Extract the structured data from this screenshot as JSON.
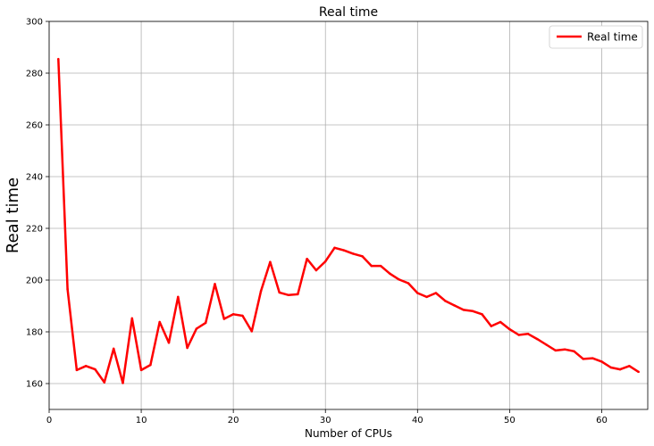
{
  "chart_data": {
    "type": "line",
    "title": "Real time",
    "xlabel": "Number of CPUs",
    "ylabel": "Real time",
    "xlim": [
      0,
      65
    ],
    "ylim": [
      150,
      300
    ],
    "xticks": [
      0,
      10,
      20,
      30,
      40,
      50,
      60
    ],
    "yticks": [
      160,
      180,
      200,
      220,
      240,
      260,
      280,
      300
    ],
    "grid": true,
    "legend_position": "top-right",
    "series": [
      {
        "name": "Real time",
        "color": "#ff0000",
        "x": [
          1,
          2,
          3,
          4,
          5,
          6,
          7,
          8,
          9,
          10,
          11,
          12,
          13,
          14,
          15,
          16,
          17,
          18,
          19,
          20,
          21,
          22,
          23,
          24,
          25,
          26,
          27,
          28,
          29,
          30,
          31,
          32,
          33,
          34,
          35,
          36,
          37,
          38,
          39,
          40,
          41,
          42,
          43,
          44,
          45,
          46,
          47,
          48,
          49,
          50,
          51,
          52,
          53,
          54,
          55,
          56,
          57,
          58,
          59,
          60,
          61,
          62,
          63,
          64
        ],
        "y": [
          285.5,
          196.5,
          165.2,
          166.8,
          165.5,
          160.5,
          173.5,
          160.2,
          185.2,
          165.2,
          167.2,
          183.8,
          175.8,
          193.5,
          173.8,
          181.2,
          183.5,
          198.5,
          185.0,
          186.8,
          186.2,
          180.2,
          195.8,
          207.0,
          195.2,
          194.2,
          194.5,
          208.2,
          203.8,
          207.2,
          212.5,
          211.5,
          210.2,
          209.2,
          205.5,
          205.5,
          202.5,
          200.2,
          198.8,
          195.0,
          193.5,
          195.0,
          192.0,
          190.2,
          188.5,
          188.0,
          186.8,
          182.2,
          183.8,
          181.0,
          178.8,
          179.2,
          177.2,
          175.0,
          172.8,
          173.2,
          172.5,
          169.5,
          169.8,
          168.5,
          166.2,
          165.5,
          166.8,
          164.5
        ]
      }
    ]
  }
}
